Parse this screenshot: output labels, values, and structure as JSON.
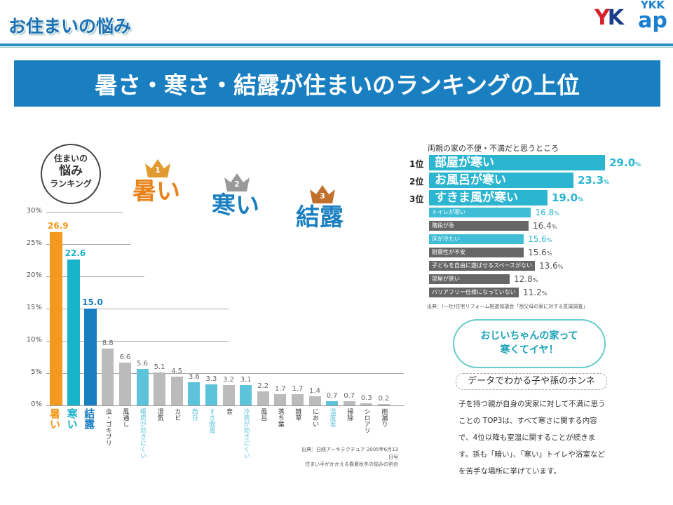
{
  "header": {
    "title": "お住まいの悩み",
    "logo_yk": "YK",
    "logo_ykk": "YKK",
    "logo_ap": "ap"
  },
  "banner": {
    "title": "暑さ・寒さ・結露が住まいのランキングの上位"
  },
  "left_panel": {
    "badge": [
      "住まいの",
      "悩み",
      "ランキング"
    ],
    "ranks": [
      {
        "num": "1",
        "label": "暑い"
      },
      {
        "num": "2",
        "label": "寒い"
      },
      {
        "num": "3",
        "label": "結露"
      }
    ],
    "source": [
      "出典：日経アーキテクチュア 2005年6月13日号",
      "住まい手がかかえる春夏秋冬の悩みの割合"
    ]
  },
  "chart_data": [
    {
      "type": "bar",
      "ylim": [
        0,
        30
      ],
      "yticks": [
        "0%",
        "5%",
        "10%",
        "15%",
        "20%",
        "25%",
        "30%"
      ],
      "categories": [
        "暑い",
        "寒い",
        "結露",
        "虫・ゴキブリ",
        "風通し",
        "暖房が効きにくい",
        "湿気",
        "カビ",
        "西日",
        "すき間風",
        "音",
        "冷房が効きにくい",
        "風呂",
        "落ち葉",
        "雑草",
        "におい",
        "温度差",
        "掃除",
        "シロアリ",
        "雨漏り"
      ],
      "values": [
        26.9,
        22.6,
        15.0,
        8.8,
        6.6,
        5.6,
        5.1,
        4.5,
        3.6,
        3.3,
        3.2,
        3.1,
        2.2,
        1.7,
        1.7,
        1.4,
        0.7,
        0.7,
        0.3,
        0.2
      ],
      "value_labels": [
        "26.9",
        "22.6",
        "15.0",
        "8.8",
        "6.6",
        "5.6",
        "5.1",
        "4.5",
        "3.6",
        "3.3",
        "3.2",
        "3.1",
        "2.2",
        "1.7",
        "1.7",
        "1.4",
        "0.7",
        "0.7",
        "0.3",
        "0.2"
      ],
      "colors": [
        "#f39a1e",
        "#1ab3cc",
        "#1a7fc0",
        "#bbbbbb",
        "#bbbbbb",
        "#5cc3da",
        "#bbbbbb",
        "#bbbbbb",
        "#5cc3da",
        "#5cc3da",
        "#bbbbbb",
        "#5cc3da",
        "#bbbbbb",
        "#bbbbbb",
        "#bbbbbb",
        "#bbbbbb",
        "#5cc3da",
        "#bbbbbb",
        "#bbbbbb",
        "#bbbbbb"
      ],
      "grid": true
    },
    {
      "type": "bar",
      "orientation": "horizontal",
      "title": "両親の家の不便・不満だと思うところ",
      "ranks": [
        "1位",
        "2位",
        "3位"
      ],
      "categories": [
        "部屋が寒い",
        "お風呂が寒い",
        "すきま風が寒い",
        "トイレが寒い",
        "階段が急",
        "床が冷たい",
        "耐震性が不安",
        "子どもを自由に遊ばせるスペースがない",
        "部屋が狭い",
        "バリアフリー仕様になっていない"
      ],
      "values": [
        29.0,
        23.3,
        19.0,
        16.8,
        16.4,
        15.6,
        15.6,
        13.6,
        12.8,
        11.2
      ],
      "value_labels": [
        "29.0",
        "23.3",
        "19.0",
        "16.8",
        "16.4",
        "15.6",
        "15.6",
        "13.6",
        "12.8",
        "11.2"
      ],
      "unit": "%",
      "colors": [
        "#2bb5d0",
        "#2bb5d0",
        "#2bb5d0",
        "#3fbdd6",
        "#666666",
        "#3fbdd6",
        "#666666",
        "#666666",
        "#666666",
        "#666666"
      ],
      "source": "出典：(一社)住宅リフォーム推進協議会「祖父母の家に対する意識調査」"
    }
  ],
  "right_panel": {
    "bubble": [
      "おじいちゃんの家って",
      "寒くてイヤ！"
    ],
    "honne": "データでわかる子や孫のホンネ",
    "body": "子を持つ親が自身の実家に対して不満に思うことの TOP3は、すべて寒さに関する内容で、4位以降も室温に関することが続きます。孫も「暗い」、「寒い」トイレや浴室などを苦手な場所に挙げています。"
  }
}
